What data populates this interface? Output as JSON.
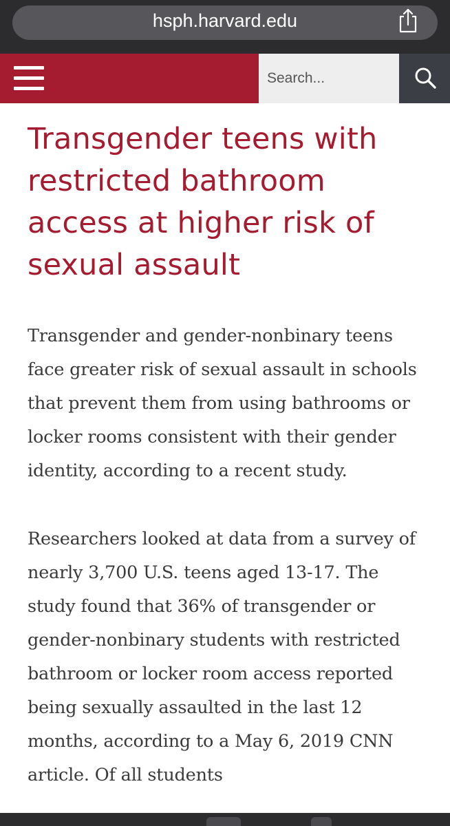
{
  "browser": {
    "url": "hsph.harvard.edu",
    "share_icon": "share-icon"
  },
  "header": {
    "menu_icon": "hamburger-menu-icon",
    "search_placeholder": "Search...",
    "search_icon": "magnifier-icon",
    "brand_color": "#a51c30"
  },
  "article": {
    "title": "Transgender teens with restricted bathroom access at higher risk of sexual assault",
    "paragraphs": [
      "Transgender and gender-nonbinary teens face greater risk of sexual assault in schools that prevent them from using bathrooms or locker rooms consistent with their gender identity, according to a recent study.",
      "Researchers looked at data from a survey of nearly 3,700 U.S. teens aged 13-17. The study found that 36% of transgender or gender-nonbinary students with restricted bathroom or locker room access reported being sexually assaulted in the last 12 months, according to a May 6, 2019 CNN article. Of all students"
    ]
  }
}
